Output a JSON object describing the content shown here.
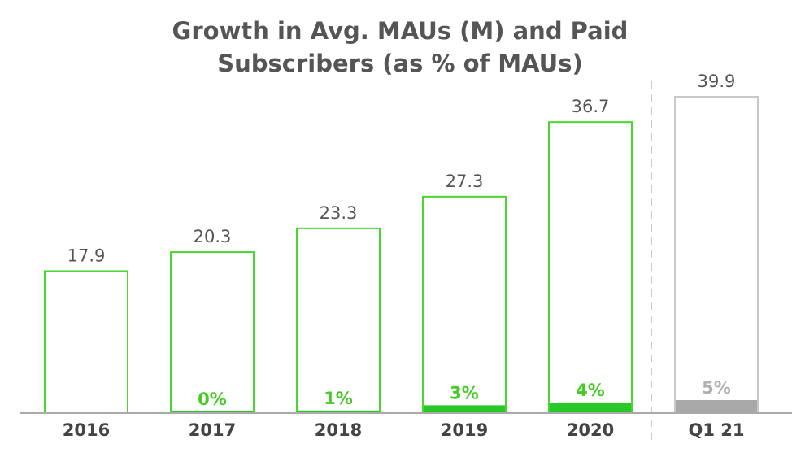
{
  "chart_data": {
    "type": "bar",
    "title": [
      "Growth in Avg. MAUs (M) and Paid",
      "Subscribers (as % of MAUs)"
    ],
    "categories": [
      "2016",
      "2017",
      "2018",
      "2019",
      "2020",
      "Q1 21"
    ],
    "series": [
      {
        "values": [
          17.9,
          20.3,
          23.3,
          27.3,
          36.7,
          39.9
        ],
        "labels": [
          "17.9",
          "20.3",
          "23.3",
          "27.3",
          "36.7",
          "39.9"
        ]
      },
      {
        "values": [
          null,
          0,
          1,
          3,
          4,
          5
        ],
        "labels": [
          "",
          "0%",
          "1%",
          "3%",
          "4%",
          "5%"
        ]
      }
    ],
    "ylim": [
      0,
      40
    ],
    "grid": false,
    "colors": {
      "green": "#49d62f",
      "green_fill": "#28c828",
      "green_text": "#44cc22",
      "grey": "#c8c8c8",
      "grey_fill": "#a8a8a8",
      "grey_text": "#b0b0b0",
      "baseline": "#aaaaaa",
      "text": "#555555"
    }
  }
}
